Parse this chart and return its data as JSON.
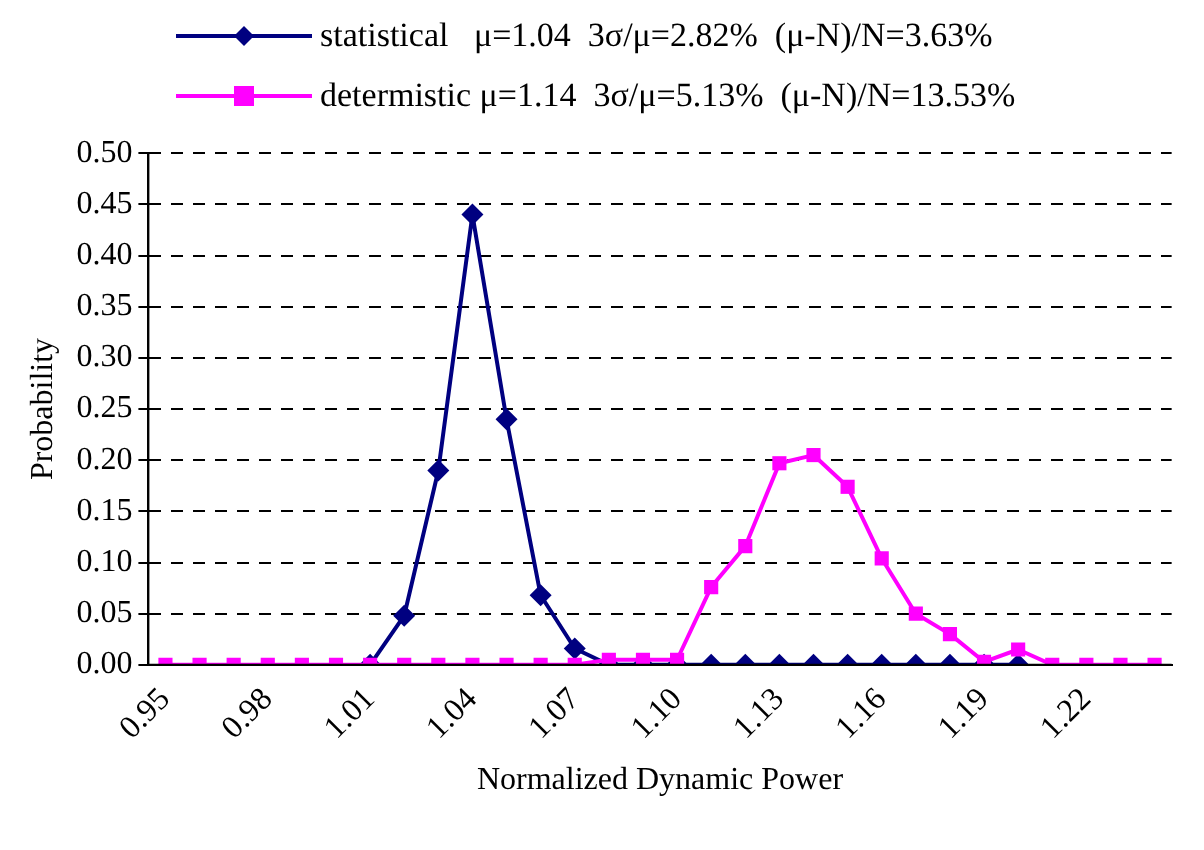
{
  "chart_data": {
    "type": "line",
    "xlabel": "Normalized Dynamic Power",
    "ylabel": "Probability",
    "categories": [
      "0.95",
      null,
      null,
      "0.98",
      null,
      null,
      "1.01",
      null,
      null,
      "1.04",
      null,
      null,
      "1.07",
      null,
      null,
      "1.10",
      null,
      null,
      "1.13",
      null,
      null,
      "1.16",
      null,
      null,
      "1.19",
      null,
      null,
      "1.22",
      null,
      null
    ],
    "series": [
      {
        "name": "statistical   μ=1.04  3σ/μ=2.82%  (μ-N)/N=3.63%",
        "color": "#000080",
        "marker": "diamond",
        "values": [
          null,
          null,
          null,
          null,
          null,
          null,
          0,
          0.048,
          0.19,
          0.44,
          0.24,
          0.068,
          0.016,
          0,
          0,
          0,
          0,
          0,
          0,
          0,
          0,
          0,
          0,
          0,
          0,
          0,
          null,
          null,
          null,
          null
        ]
      },
      {
        "name": "determistic μ=1.14  3σ/μ=5.13%  (μ-N)/N=13.53%",
        "color": "#ff00ff",
        "marker": "square",
        "values": [
          0,
          0,
          0,
          0,
          0,
          0,
          0,
          0,
          0,
          0,
          0,
          0,
          0,
          0.005,
          0.005,
          0.005,
          0.076,
          0.116,
          0.197,
          0.205,
          0.174,
          0.104,
          0.05,
          0.03,
          0.003,
          0.015,
          0,
          0,
          0,
          0
        ]
      }
    ],
    "ylim": [
      0,
      0.5
    ],
    "yticks": [
      {
        "value": 0,
        "label": "0.00"
      },
      {
        "value": 0.05,
        "label": "0.05"
      },
      {
        "value": 0.1,
        "label": "0.10"
      },
      {
        "value": 0.15,
        "label": "0.15"
      },
      {
        "value": 0.2,
        "label": "0.20"
      },
      {
        "value": 0.25,
        "label": "0.25"
      },
      {
        "value": 0.3,
        "label": "0.30"
      },
      {
        "value": 0.35,
        "label": "0.35"
      },
      {
        "value": 0.4,
        "label": "0.40"
      },
      {
        "value": 0.45,
        "label": "0.45"
      },
      {
        "value": 0.5,
        "label": "0.50"
      }
    ],
    "grid": "y",
    "legend": "top left",
    "line_style": "solid"
  }
}
